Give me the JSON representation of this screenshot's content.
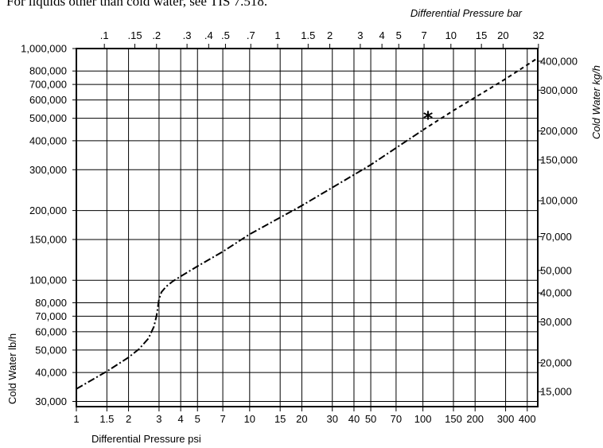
{
  "note": "For liquids other than cold water, see TIS 7.518.",
  "chart_data": {
    "type": "line",
    "title": "",
    "x_log_scale": true,
    "y_log_scale": true,
    "grid": true,
    "xlabel": "Differential Pressure psi",
    "x2label": "Differential Pressure bar",
    "ylabel": "Cold Water lb/h",
    "y2label": "Cold Water kg/h",
    "xlim": [
      1,
      460
    ],
    "ylim": [
      28500,
      1000000
    ],
    "x_ticks": [
      {
        "v": 1,
        "label": "1"
      },
      {
        "v": 1.5,
        "label": "1.5"
      },
      {
        "v": 2,
        "label": "2"
      },
      {
        "v": 3,
        "label": "3"
      },
      {
        "v": 4,
        "label": "4"
      },
      {
        "v": 5,
        "label": "5"
      },
      {
        "v": 7,
        "label": "7"
      },
      {
        "v": 10,
        "label": "10"
      },
      {
        "v": 15,
        "label": "15"
      },
      {
        "v": 20,
        "label": "20"
      },
      {
        "v": 30,
        "label": "30"
      },
      {
        "v": 40,
        "label": "40"
      },
      {
        "v": 50,
        "label": "50"
      },
      {
        "v": 70,
        "label": "70"
      },
      {
        "v": 100,
        "label": "100"
      },
      {
        "v": 150,
        "label": "150"
      },
      {
        "v": 200,
        "label": "200"
      },
      {
        "v": 300,
        "label": "300"
      },
      {
        "v": 400,
        "label": "400"
      }
    ],
    "x2_ticks": [
      {
        "v": 0.1,
        "label": ".1"
      },
      {
        "v": 0.15,
        "label": ".15"
      },
      {
        "v": 0.2,
        "label": ".2"
      },
      {
        "v": 0.3,
        "label": ".3"
      },
      {
        "v": 0.4,
        "label": ".4"
      },
      {
        "v": 0.5,
        "label": ".5"
      },
      {
        "v": 0.7,
        "label": ".7"
      },
      {
        "v": 1,
        "label": "1"
      },
      {
        "v": 1.5,
        "label": "1.5"
      },
      {
        "v": 2,
        "label": "2"
      },
      {
        "v": 3,
        "label": "3"
      },
      {
        "v": 4,
        "label": "4"
      },
      {
        "v": 5,
        "label": "5"
      },
      {
        "v": 7,
        "label": "7"
      },
      {
        "v": 10,
        "label": "10"
      },
      {
        "v": 15,
        "label": "15"
      },
      {
        "v": 20,
        "label": "20"
      },
      {
        "v": 32,
        "label": "32"
      }
    ],
    "y_ticks": [
      {
        "v": 30000,
        "label": "30,000"
      },
      {
        "v": 40000,
        "label": "40,000"
      },
      {
        "v": 50000,
        "label": "50,000"
      },
      {
        "v": 60000,
        "label": "60,000"
      },
      {
        "v": 70000,
        "label": "70,000"
      },
      {
        "v": 80000,
        "label": "80,000"
      },
      {
        "v": 100000,
        "label": "100,000"
      },
      {
        "v": 150000,
        "label": "150,000"
      },
      {
        "v": 200000,
        "label": "200,000"
      },
      {
        "v": 300000,
        "label": "300,000"
      },
      {
        "v": 400000,
        "label": "400,000"
      },
      {
        "v": 500000,
        "label": "500,000"
      },
      {
        "v": 600000,
        "label": "600,000"
      },
      {
        "v": 700000,
        "label": "700,000"
      },
      {
        "v": 800000,
        "label": "800,000"
      },
      {
        "v": 1000000,
        "label": "1,000,000"
      }
    ],
    "y2_ticks": [
      {
        "v": 15000,
        "label": "15,000"
      },
      {
        "v": 20000,
        "label": "20,000"
      },
      {
        "v": 30000,
        "label": "30,000"
      },
      {
        "v": 40000,
        "label": "40,000"
      },
      {
        "v": 50000,
        "label": "50,000"
      },
      {
        "v": 70000,
        "label": "70,000"
      },
      {
        "v": 100000,
        "label": "100,000"
      },
      {
        "v": 150000,
        "label": "150,000"
      },
      {
        "v": 200000,
        "label": "200,000"
      },
      {
        "v": 300000,
        "label": "300,000"
      },
      {
        "v": 400000,
        "label": "400,000"
      }
    ],
    "series": [
      {
        "style": "dash-dot",
        "x": [
          1,
          1.5,
          2,
          2.3,
          2.6,
          2.8,
          2.9,
          2.95,
          3.0,
          3.1,
          3.3,
          3.6,
          4,
          5,
          7,
          10,
          20,
          50,
          100
        ],
        "y": [
          34000,
          40500,
          46500,
          50500,
          56000,
          63000,
          70000,
          76000,
          83000,
          89000,
          94000,
          99000,
          104000,
          115000,
          133000,
          158000,
          210000,
          315000,
          445000
        ]
      },
      {
        "style": "dashed",
        "x": [
          100,
          150,
          200,
          300,
          460
        ],
        "y": [
          445000,
          540000,
          615000,
          740000,
          910000
        ]
      }
    ],
    "annotations": [
      {
        "text": "*",
        "x": 107,
        "y": 510000
      }
    ],
    "colors": {
      "line": "#000000",
      "grid": "#000000",
      "background": "#ffffff"
    }
  }
}
